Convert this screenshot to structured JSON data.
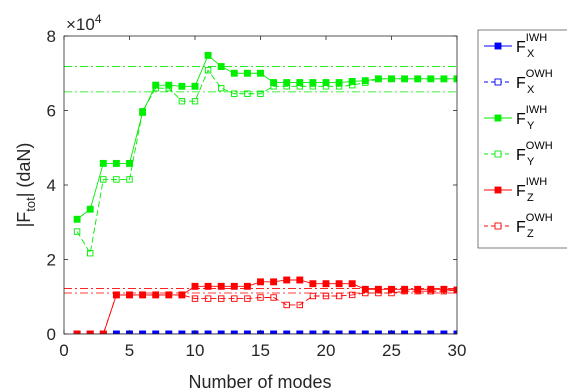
{
  "chart_data": {
    "type": "line",
    "xlabel": "Number of modes",
    "ylabel_main": "|F",
    "ylabel_sub": "tot",
    "ylabel_rest": "| (daN)",
    "multiplier_base": "×10",
    "multiplier_exp": "4",
    "xlim": [
      0,
      30
    ],
    "ylim": [
      0,
      80000
    ],
    "xticks": [
      0,
      5,
      10,
      15,
      20,
      25,
      30
    ],
    "yticks": [
      0,
      20000,
      40000,
      60000,
      80000
    ],
    "ytick_labels": [
      "0",
      "2",
      "4",
      "6",
      "8"
    ],
    "grid": false,
    "legend_position": "outside-right",
    "x": [
      1,
      2,
      3,
      4,
      5,
      6,
      7,
      8,
      9,
      10,
      11,
      12,
      13,
      14,
      15,
      16,
      17,
      18,
      19,
      20,
      21,
      22,
      23,
      24,
      25,
      26,
      27,
      28,
      29,
      30
    ],
    "series": [
      {
        "base": "F",
        "sub": "X",
        "sup": "IWH",
        "color": "#0000ff",
        "style": "solid",
        "marker": "filled-square",
        "values": [
          0,
          0,
          0,
          0,
          0,
          0,
          0,
          0,
          0,
          0,
          0,
          0,
          0,
          0,
          0,
          0,
          0,
          0,
          0,
          0,
          0,
          0,
          0,
          0,
          0,
          0,
          0,
          0,
          0,
          0
        ]
      },
      {
        "base": "F",
        "sub": "X",
        "sup": "OWH",
        "color": "#0000ff",
        "style": "dashed",
        "marker": "open-square",
        "values": [
          0,
          0,
          0,
          0,
          0,
          0,
          0,
          0,
          0,
          0,
          0,
          0,
          0,
          0,
          0,
          0,
          0,
          0,
          0,
          0,
          0,
          0,
          0,
          0,
          0,
          0,
          0,
          0,
          0,
          0
        ]
      },
      {
        "base": "F",
        "sub": "Y",
        "sup": "IWH",
        "color": "#00ee00",
        "style": "solid",
        "marker": "filled-square",
        "values": [
          30800,
          33500,
          45800,
          45800,
          45800,
          59500,
          66800,
          66800,
          66500,
          66500,
          74800,
          71800,
          70000,
          70000,
          70000,
          67500,
          67500,
          67500,
          67500,
          67500,
          67500,
          67800,
          68000,
          68500,
          68500,
          68500,
          68500,
          68500,
          68500,
          68500
        ]
      },
      {
        "base": "F",
        "sub": "Y",
        "sup": "OWH",
        "color": "#00ee00",
        "style": "dashed",
        "marker": "open-square",
        "values": [
          27500,
          21700,
          41500,
          41500,
          41500,
          59800,
          66000,
          66000,
          62500,
          62500,
          70800,
          66000,
          64500,
          64500,
          64500,
          66500,
          66500,
          66500,
          66500,
          66500,
          66500,
          66800,
          67500,
          68500,
          68500,
          68500,
          68500,
          68500,
          68500,
          68500
        ]
      },
      {
        "base": "F",
        "sub": "Z",
        "sup": "IWH",
        "color": "#ff0000",
        "style": "solid",
        "marker": "filled-square",
        "values": [
          0,
          0,
          0,
          10500,
          10500,
          10500,
          10500,
          10500,
          10500,
          12800,
          12800,
          12800,
          12800,
          12800,
          14000,
          14000,
          14500,
          14500,
          13500,
          13500,
          13500,
          13500,
          12000,
          12000,
          12000,
          12000,
          12000,
          12000,
          12000,
          11800
        ]
      },
      {
        "base": "F",
        "sub": "Z",
        "sup": "OWH",
        "color": "#ff0000",
        "style": "dashed",
        "marker": "open-square",
        "values": [
          0,
          0,
          0,
          10500,
          10500,
          10500,
          10500,
          10500,
          10500,
          9500,
          9500,
          9500,
          9500,
          9500,
          9800,
          9800,
          7800,
          7800,
          10200,
          10200,
          10200,
          10500,
          11000,
          11000,
          11000,
          11500,
          11500,
          11500,
          11500,
          11800
        ]
      }
    ],
    "reference_lines": [
      {
        "value": 71800,
        "color": "#00ee00",
        "style": "dashdot"
      },
      {
        "value": 65000,
        "color": "#00ee00",
        "style": "dashdot"
      },
      {
        "value": 12200,
        "color": "#ff0000",
        "style": "dashdot"
      },
      {
        "value": 11000,
        "color": "#ff0000",
        "style": "dashdot"
      }
    ]
  }
}
